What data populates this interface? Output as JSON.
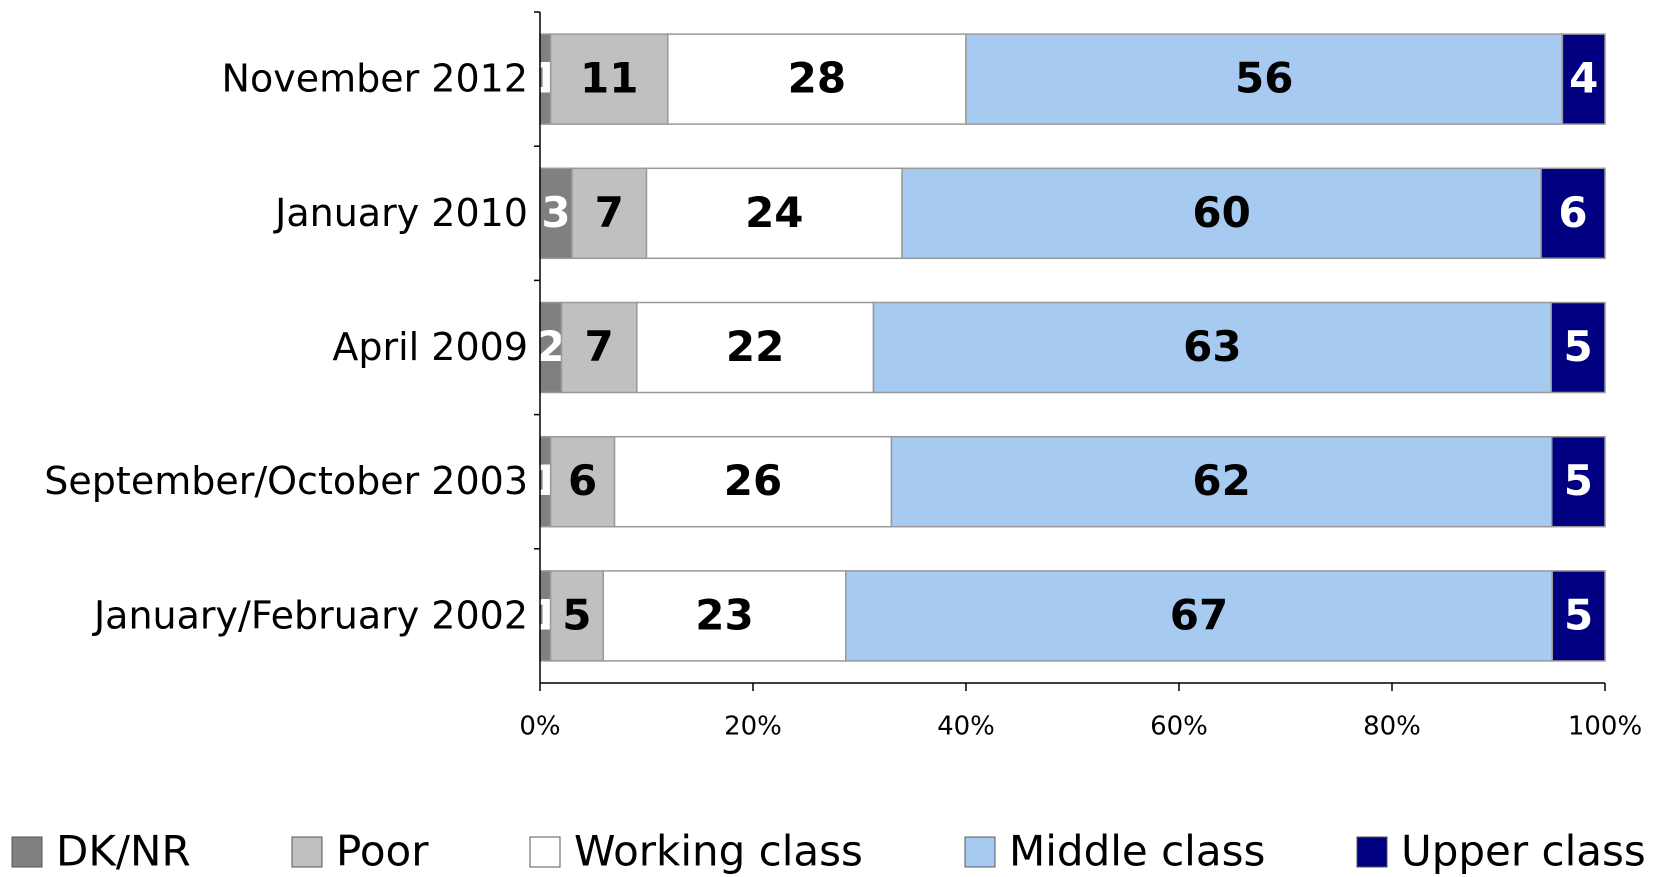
{
  "chart_data": {
    "type": "stacked_bar_horizontal",
    "stacking": "percent",
    "categories": [
      "November 2012",
      "January 2010",
      "April 2009",
      "September/October 2003",
      "January/February 2002"
    ],
    "series": [
      {
        "name": "DK/NR",
        "color": "#808080",
        "label_color": "#ffffff",
        "values": [
          1,
          3,
          2,
          1,
          1
        ]
      },
      {
        "name": "Poor",
        "color": "#c0c0c0",
        "label_color": "#000000",
        "values": [
          11,
          7,
          7,
          6,
          5
        ]
      },
      {
        "name": "Working class",
        "color": "#ffffff",
        "label_color": "#000000",
        "values": [
          28,
          24,
          22,
          26,
          23
        ]
      },
      {
        "name": "Middle class",
        "color": "#a6caf0",
        "label_color": "#000000",
        "values": [
          56,
          60,
          63,
          62,
          67
        ]
      },
      {
        "name": "Upper class",
        "color": "#000080",
        "label_color": "#ffffff",
        "values": [
          4,
          6,
          5,
          5,
          5
        ]
      }
    ],
    "xlim": [
      0,
      100
    ],
    "xticks": [
      {
        "value": 0,
        "label": "0%"
      },
      {
        "value": 20,
        "label": "20%"
      },
      {
        "value": 40,
        "label": "40%"
      },
      {
        "value": 60,
        "label": "60%"
      },
      {
        "value": 80,
        "label": "80%"
      },
      {
        "value": 100,
        "label": "100%"
      }
    ],
    "legend": "bottom"
  }
}
